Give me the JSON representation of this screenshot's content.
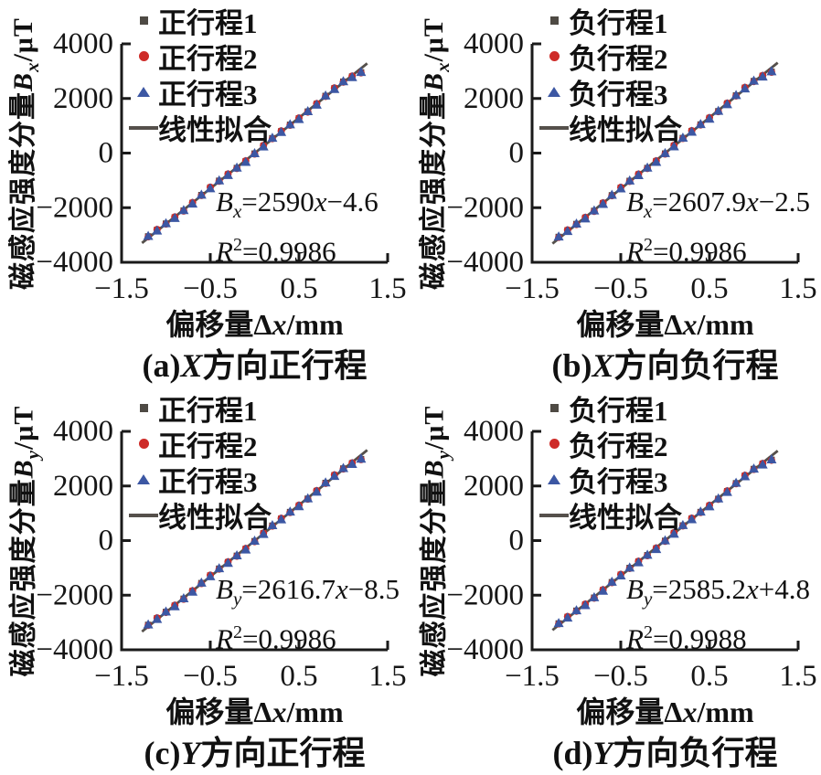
{
  "page": {
    "background": "#ffffff"
  },
  "colors": {
    "series1": "#4e4a44",
    "series2": "#ce2b28",
    "series3": "#3c57a3",
    "fit_line": "#55504b",
    "axis": "#1a1a1a",
    "text": "#161616"
  },
  "chart_data": [
    {
      "type": "scatter",
      "caption": {
        "pre": "(a)",
        "var": "X",
        "post": "方向正行程"
      },
      "xlabel": {
        "pre": "偏移量Δ",
        "var": "x",
        "post": "/mm"
      },
      "ylabel": {
        "pre": "磁感应强度分量",
        "var": "B",
        "sub": "x",
        "post": "/μT"
      },
      "xlim": [
        -1.5,
        1.5
      ],
      "ylim": [
        -4000,
        4000
      ],
      "x_ticks": [
        -1.5,
        -0.5,
        0.5,
        1.5
      ],
      "y_ticks": [
        4000,
        2000,
        0,
        -2000,
        -4000
      ],
      "grid": false,
      "legend": [
        {
          "marker": "square",
          "label": "正行程1"
        },
        {
          "marker": "circle",
          "label": "正行程2"
        },
        {
          "marker": "triangle",
          "label": "正行程3"
        },
        {
          "marker": "line",
          "label": "线性拟合"
        }
      ],
      "fit": {
        "lhs": "B",
        "lhs_sub": "x",
        "rhs_pre": "=2590",
        "rhs_var": "x",
        "rhs_post": "−4.6",
        "r2_var": "R",
        "r2_sup": "2",
        "r2_val": "=0.9986",
        "slope": 2590,
        "intercept": -4.6,
        "r2": 0.9986
      },
      "x": [
        -1.2,
        -1.1,
        -1.0,
        -0.9,
        -0.8,
        -0.7,
        -0.6,
        -0.5,
        -0.4,
        -0.3,
        -0.2,
        -0.1,
        0,
        0.1,
        0.2,
        0.3,
        0.4,
        0.5,
        0.6,
        0.7,
        0.8,
        0.9,
        1.0,
        1.1,
        1.2
      ],
      "series": [
        {
          "name": "正行程1",
          "marker": "square",
          "y": [
            -3053,
            -2814,
            -2585,
            -2356,
            -2107,
            -1828,
            -1539,
            -1265,
            -1016,
            -782,
            -548,
            -299,
            -20,
            264,
            543,
            797,
            1036,
            1270,
            1519,
            1798,
            2092,
            2371,
            2615,
            2804,
            2953
          ]
        },
        {
          "name": "正行程2",
          "marker": "circle",
          "y": [
            -3068,
            -2799,
            -2600,
            -2341,
            -2122,
            -1813,
            -1554,
            -1250,
            -1031,
            -767,
            -563,
            -284,
            -35,
            279,
            528,
            812,
            1021,
            1285,
            1504,
            1813,
            2077,
            2386,
            2600,
            2819,
            2938
          ]
        },
        {
          "name": "正行程3",
          "marker": "triangle",
          "y": [
            -3031,
            -2832,
            -2563,
            -2374,
            -2085,
            -1846,
            -1517,
            -1283,
            -994,
            -800,
            -526,
            -317,
            2,
            246,
            565,
            779,
            1058,
            1252,
            1541,
            1780,
            2114,
            2353,
            2637,
            2786,
            2975
          ]
        }
      ]
    },
    {
      "type": "scatter",
      "caption": {
        "pre": "(b)",
        "var": "X",
        "post": "方向负行程"
      },
      "xlabel": {
        "pre": "偏移量Δ",
        "var": "x",
        "post": "/mm"
      },
      "ylabel": {
        "pre": "磁感应强度分量",
        "var": "B",
        "sub": "x",
        "post": "/μT"
      },
      "xlim": [
        -1.5,
        1.5
      ],
      "ylim": [
        -4000,
        4000
      ],
      "x_ticks": [
        -1.5,
        -0.5,
        0.5,
        1.5
      ],
      "y_ticks": [
        4000,
        2000,
        0,
        -2000,
        -4000
      ],
      "grid": false,
      "legend": [
        {
          "marker": "square",
          "label": "负行程1"
        },
        {
          "marker": "circle",
          "label": "负行程2"
        },
        {
          "marker": "triangle",
          "label": "负行程3"
        },
        {
          "marker": "line",
          "label": "线性拟合"
        }
      ],
      "fit": {
        "lhs": "B",
        "lhs_sub": "x",
        "rhs_pre": "=2607.9",
        "rhs_var": "x",
        "rhs_post": "−2.5",
        "r2_var": "R",
        "r2_sup": "2",
        "r2_val": "=0.9986",
        "slope": 2607.9,
        "intercept": -2.5,
        "r2": 0.9986
      },
      "x": [
        -1.2,
        -1.1,
        -1.0,
        -0.9,
        -0.8,
        -0.7,
        -0.6,
        -0.5,
        -0.4,
        -0.3,
        -0.2,
        -0.1,
        0,
        0.1,
        0.2,
        0.3,
        0.4,
        0.5,
        0.6,
        0.7,
        0.8,
        0.9,
        1.0,
        1.1,
        1.2
      ],
      "series": [
        {
          "name": "负行程1",
          "marker": "square",
          "y": [
            -3072,
            -2831,
            -2600,
            -2370,
            -2119,
            -1838,
            -1547,
            -1271,
            -1021,
            -785,
            -549,
            -298,
            -18,
            268,
            549,
            805,
            1046,
            1281,
            1532,
            1813,
            2109,
            2390,
            2635,
            2826,
            2977
          ]
        },
        {
          "name": "负行程2",
          "marker": "circle",
          "y": [
            -3087,
            -2816,
            -2615,
            -2355,
            -2134,
            -1823,
            -1562,
            -1256,
            -1036,
            -770,
            -564,
            -283,
            -33,
            283,
            534,
            820,
            1031,
            1296,
            1517,
            1828,
            2094,
            2405,
            2620,
            2841,
            2962
          ]
        },
        {
          "name": "负行程3",
          "marker": "triangle",
          "y": [
            -3050,
            -2849,
            -2578,
            -2388,
            -2097,
            -1856,
            -1525,
            -1289,
            -999,
            -803,
            -527,
            -316,
            4,
            250,
            571,
            787,
            1068,
            1263,
            1554,
            1795,
            2131,
            2372,
            2657,
            2808,
            2999
          ]
        }
      ]
    },
    {
      "type": "scatter",
      "caption": {
        "pre": "(c)",
        "var": "Y",
        "post": "方向正行程"
      },
      "xlabel": {
        "pre": "偏移量Δ",
        "var": "x",
        "post": "/mm"
      },
      "ylabel": {
        "pre": "磁感应强度分量",
        "var": "B",
        "sub": "y",
        "post": "/μT"
      },
      "xlim": [
        -1.5,
        1.5
      ],
      "ylim": [
        -4000,
        4000
      ],
      "x_ticks": [
        -1.5,
        -0.5,
        0.5,
        1.5
      ],
      "y_ticks": [
        4000,
        2000,
        0,
        -2000,
        -4000
      ],
      "grid": false,
      "legend": [
        {
          "marker": "square",
          "label": "正行程1"
        },
        {
          "marker": "circle",
          "label": "正行程2"
        },
        {
          "marker": "triangle",
          "label": "正行程3"
        },
        {
          "marker": "line",
          "label": "线性拟合"
        }
      ],
      "fit": {
        "lhs": "B",
        "lhs_sub": "y",
        "rhs_pre": "=2616.7",
        "rhs_var": "x",
        "rhs_post": "−8.5",
        "r2_var": "R",
        "r2_sup": "2",
        "r2_val": "=0.9986",
        "slope": 2616.7,
        "intercept": -8.5,
        "r2": 0.9986
      },
      "x": [
        -1.2,
        -1.1,
        -1.0,
        -0.9,
        -0.8,
        -0.7,
        -0.6,
        -0.5,
        -0.4,
        -0.3,
        -0.2,
        -0.1,
        0,
        0.1,
        0.2,
        0.3,
        0.4,
        0.5,
        0.6,
        0.7,
        0.8,
        0.9,
        1.0,
        1.1,
        1.2
      ],
      "series": [
        {
          "name": "正行程1",
          "marker": "square",
          "y": [
            -3089,
            -2847,
            -2615,
            -2384,
            -2132,
            -1850,
            -1559,
            -1282,
            -1030,
            -794,
            -557,
            -305,
            -24,
            263,
            545,
            802,
            1043,
            1280,
            1532,
            1813,
            2110,
            2392,
            2638,
            2830,
            2982
          ]
        },
        {
          "name": "正行程2",
          "marker": "circle",
          "y": [
            -3104,
            -2832,
            -2630,
            -2369,
            -2147,
            -1835,
            -1574,
            -1267,
            -1045,
            -779,
            -572,
            -290,
            -39,
            278,
            530,
            817,
            1028,
            1295,
            1517,
            1828,
            2095,
            2407,
            2623,
            2845,
            2967
          ]
        },
        {
          "name": "正行程3",
          "marker": "triangle",
          "y": [
            -3067,
            -2865,
            -2593,
            -2402,
            -2110,
            -1868,
            -1537,
            -1300,
            -1008,
            -812,
            -535,
            -323,
            -2,
            245,
            567,
            784,
            1065,
            1262,
            1554,
            1795,
            2132,
            2374,
            2660,
            2812,
            3004
          ]
        }
      ]
    },
    {
      "type": "scatter",
      "caption": {
        "pre": "(d)",
        "var": "Y",
        "post": "方向负行程"
      },
      "xlabel": {
        "pre": "偏移量Δ",
        "var": "x",
        "post": "/mm"
      },
      "ylabel": {
        "pre": "磁感应强度分量",
        "var": "B",
        "sub": "y",
        "post": "/μT"
      },
      "xlim": [
        -1.5,
        1.5
      ],
      "ylim": [
        -4000,
        4000
      ],
      "x_ticks": [
        -1.5,
        -0.5,
        0.5,
        1.5
      ],
      "y_ticks": [
        4000,
        2000,
        0,
        -2000,
        -4000
      ],
      "grid": false,
      "legend": [
        {
          "marker": "square",
          "label": "负行程1"
        },
        {
          "marker": "circle",
          "label": "负行程2"
        },
        {
          "marker": "triangle",
          "label": "负行程3"
        },
        {
          "marker": "line",
          "label": "线性拟合"
        }
      ],
      "fit": {
        "lhs": "B",
        "lhs_sub": "y",
        "rhs_pre": "=2585.2",
        "rhs_var": "x",
        "rhs_post": "+4.8",
        "r2_var": "R",
        "r2_sup": "2",
        "r2_val": "=0.9988",
        "slope": 2585.2,
        "intercept": 4.8,
        "r2": 0.9988
      },
      "x": [
        -1.2,
        -1.1,
        -1.0,
        -0.9,
        -0.8,
        -0.7,
        -0.6,
        -0.5,
        -0.4,
        -0.3,
        -0.2,
        -0.1,
        0,
        0.1,
        0.2,
        0.3,
        0.4,
        0.5,
        0.6,
        0.7,
        0.8,
        0.9,
        1.0,
        1.1,
        1.2
      ],
      "series": [
        {
          "name": "负行程1",
          "marker": "square",
          "y": [
            -3037,
            -2799,
            -2570,
            -2342,
            -2093,
            -1815,
            -1526,
            -1253,
            -1004,
            -771,
            -537,
            -289,
            -10,
            273,
            552,
            805,
            1044,
            1277,
            1526,
            1804,
            2098,
            2376,
            2620,
            2809,
            2957
          ]
        },
        {
          "name": "负行程2",
          "marker": "circle",
          "y": [
            -3052,
            -2784,
            -2585,
            -2327,
            -2108,
            -1800,
            -1541,
            -1238,
            -1019,
            -756,
            -552,
            -274,
            -25,
            288,
            537,
            820,
            1029,
            1292,
            1511,
            1819,
            2083,
            2391,
            2605,
            2824,
            2942
          ]
        },
        {
          "name": "负行程3",
          "marker": "triangle",
          "y": [
            -3015,
            -2817,
            -2548,
            -2360,
            -2071,
            -1833,
            -1504,
            -1271,
            -982,
            -789,
            -515,
            -307,
            12,
            255,
            574,
            787,
            1066,
            1259,
            1548,
            1786,
            2120,
            2358,
            2642,
            2791,
            2979
          ]
        }
      ]
    }
  ]
}
